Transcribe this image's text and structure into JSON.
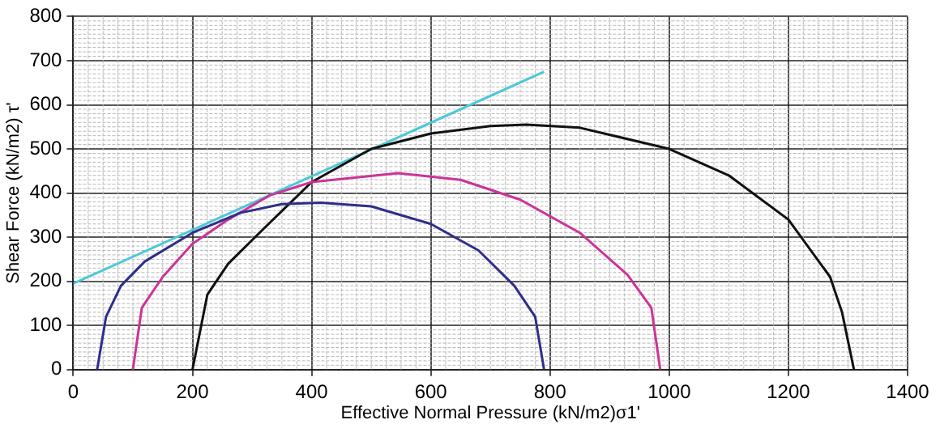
{
  "chart_data": {
    "type": "line",
    "xlabel": "Effective Normal Pressure (kN/m2)σ1'",
    "ylabel": "Shear Force (kN/m2) τ'",
    "xlim": [
      0,
      1400
    ],
    "xticks": [
      0,
      200,
      400,
      600,
      800,
      1000,
      1200,
      1400
    ],
    "ylim": [
      0,
      800
    ],
    "yticks": [
      0,
      100,
      200,
      300,
      400,
      500,
      600,
      700,
      800
    ],
    "grid": true,
    "legend": false,
    "marker": "none",
    "line_style": "solid",
    "series": [
      {
        "color": "#2e2e8a",
        "x": [
          40,
          55,
          80,
          120,
          200,
          280,
          350,
          415,
          500,
          600,
          680,
          740,
          775,
          790
        ],
        "values": [
          0,
          120,
          190,
          245,
          310,
          355,
          375,
          378,
          370,
          330,
          270,
          190,
          120,
          0
        ]
      },
      {
        "color": "#cc3399",
        "x": [
          100,
          115,
          150,
          200,
          260,
          330,
          400,
          545,
          650,
          750,
          850,
          930,
          970,
          985
        ],
        "values": [
          0,
          140,
          210,
          285,
          340,
          395,
          425,
          445,
          430,
          385,
          310,
          215,
          140,
          0
        ]
      },
      {
        "color": "#111111",
        "x": [
          200,
          225,
          260,
          320,
          400,
          500,
          600,
          700,
          760,
          850,
          1000,
          1100,
          1200,
          1270,
          1290,
          1310
        ],
        "values": [
          0,
          170,
          240,
          320,
          425,
          500,
          535,
          552,
          555,
          548,
          500,
          440,
          340,
          210,
          130,
          0
        ]
      },
      {
        "color": "#4cc8d8",
        "x": [
          0,
          790
        ],
        "values": [
          195,
          675
        ]
      }
    ]
  }
}
